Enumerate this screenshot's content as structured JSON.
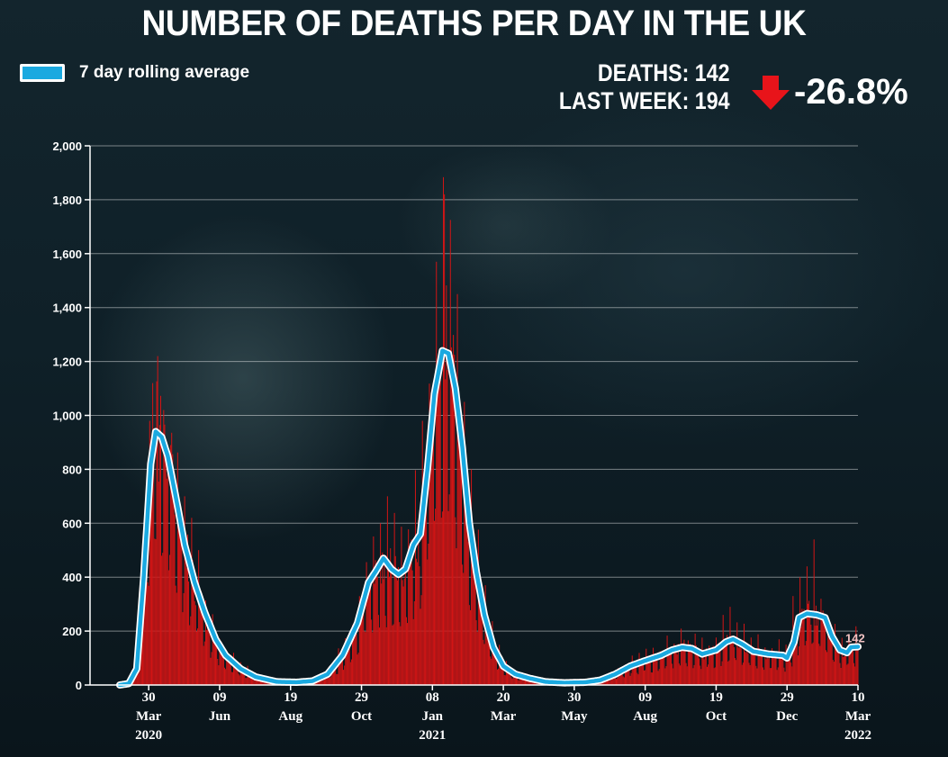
{
  "title": "NUMBER OF DEATHS PER DAY IN THE UK",
  "legend": {
    "label": "7 day rolling average",
    "color": "#1aa9e0"
  },
  "stats": {
    "deaths_label": "DEATHS: 142",
    "last_week_label": "LAST WEEK: 194",
    "change": "-26.8%",
    "arrow_icon": "down-arrow-icon",
    "arrow_color": "#e8141a"
  },
  "colors": {
    "bars": "#d31515",
    "line": "#1aa9e0",
    "line_outline": "#ffffff"
  },
  "chart_data": {
    "type": "bar",
    "title": "NUMBER OF DEATHS PER DAY IN THE UK",
    "xlabel": "",
    "ylabel": "",
    "ylim": [
      0,
      2000
    ],
    "yticks": [
      "0",
      "200",
      "400",
      "600",
      "800",
      "1,000",
      "1,200",
      "1,400",
      "1,600",
      "1,800",
      "2,000"
    ],
    "grid": true,
    "legend_position": "top-left",
    "x_range": [
      "2020-03-01",
      "2022-03-10"
    ],
    "x_ticks": [
      {
        "date": "2020-03-30",
        "day": "30",
        "month": "Mar",
        "year": "2020"
      },
      {
        "date": "2020-06-09",
        "day": "09",
        "month": "Jun",
        "year": ""
      },
      {
        "date": "2020-08-19",
        "day": "19",
        "month": "Aug",
        "year": ""
      },
      {
        "date": "2020-10-29",
        "day": "29",
        "month": "Oct",
        "year": ""
      },
      {
        "date": "2021-01-08",
        "day": "08",
        "month": "Jan",
        "year": "2021"
      },
      {
        "date": "2021-03-20",
        "day": "20",
        "month": "Mar",
        "year": ""
      },
      {
        "date": "2021-05-30",
        "day": "30",
        "month": "May",
        "year": ""
      },
      {
        "date": "2021-08-09",
        "day": "09",
        "month": "Aug",
        "year": ""
      },
      {
        "date": "2021-10-19",
        "day": "19",
        "month": "Oct",
        "year": ""
      },
      {
        "date": "2021-12-29",
        "day": "29",
        "month": "Dec",
        "year": ""
      },
      {
        "date": "2022-03-10",
        "day": "10",
        "month": "Mar",
        "year": "2022"
      }
    ],
    "series": [
      {
        "name": "7 day rolling average",
        "kind": "line",
        "points": [
          [
            "2020-03-01",
            0
          ],
          [
            "2020-03-10",
            5
          ],
          [
            "2020-03-18",
            60
          ],
          [
            "2020-03-25",
            400
          ],
          [
            "2020-04-01",
            820
          ],
          [
            "2020-04-06",
            940
          ],
          [
            "2020-04-12",
            920
          ],
          [
            "2020-04-18",
            850
          ],
          [
            "2020-04-26",
            700
          ],
          [
            "2020-05-05",
            520
          ],
          [
            "2020-05-15",
            380
          ],
          [
            "2020-05-25",
            270
          ],
          [
            "2020-06-05",
            170
          ],
          [
            "2020-06-15",
            110
          ],
          [
            "2020-06-30",
            60
          ],
          [
            "2020-07-15",
            30
          ],
          [
            "2020-08-05",
            12
          ],
          [
            "2020-08-25",
            10
          ],
          [
            "2020-09-10",
            15
          ],
          [
            "2020-09-25",
            40
          ],
          [
            "2020-10-10",
            110
          ],
          [
            "2020-10-25",
            230
          ],
          [
            "2020-11-05",
            380
          ],
          [
            "2020-11-12",
            420
          ],
          [
            "2020-11-20",
            470
          ],
          [
            "2020-11-28",
            430
          ],
          [
            "2020-12-05",
            410
          ],
          [
            "2020-12-12",
            430
          ],
          [
            "2020-12-20",
            520
          ],
          [
            "2020-12-27",
            560
          ],
          [
            "2021-01-03",
            800
          ],
          [
            "2021-01-10",
            1080
          ],
          [
            "2021-01-18",
            1240
          ],
          [
            "2021-01-24",
            1230
          ],
          [
            "2021-01-31",
            1100
          ],
          [
            "2021-02-07",
            880
          ],
          [
            "2021-02-14",
            600
          ],
          [
            "2021-02-21",
            420
          ],
          [
            "2021-03-01",
            260
          ],
          [
            "2021-03-10",
            140
          ],
          [
            "2021-03-20",
            70
          ],
          [
            "2021-04-01",
            40
          ],
          [
            "2021-04-15",
            25
          ],
          [
            "2021-05-01",
            12
          ],
          [
            "2021-05-20",
            8
          ],
          [
            "2021-06-10",
            10
          ],
          [
            "2021-06-25",
            18
          ],
          [
            "2021-07-10",
            40
          ],
          [
            "2021-07-25",
            70
          ],
          [
            "2021-08-09",
            90
          ],
          [
            "2021-08-25",
            110
          ],
          [
            "2021-09-05",
            130
          ],
          [
            "2021-09-15",
            140
          ],
          [
            "2021-09-25",
            135
          ],
          [
            "2021-10-05",
            115
          ],
          [
            "2021-10-19",
            130
          ],
          [
            "2021-10-29",
            160
          ],
          [
            "2021-11-05",
            170
          ],
          [
            "2021-11-15",
            150
          ],
          [
            "2021-11-25",
            125
          ],
          [
            "2021-12-10",
            115
          ],
          [
            "2021-12-25",
            110
          ],
          [
            "2021-12-29",
            100
          ],
          [
            "2022-01-05",
            160
          ],
          [
            "2022-01-10",
            250
          ],
          [
            "2022-01-18",
            265
          ],
          [
            "2022-01-28",
            260
          ],
          [
            "2022-02-05",
            250
          ],
          [
            "2022-02-12",
            180
          ],
          [
            "2022-02-20",
            130
          ],
          [
            "2022-02-27",
            120
          ],
          [
            "2022-03-03",
            140
          ],
          [
            "2022-03-10",
            142
          ]
        ]
      },
      {
        "name": "",
        "kind": "bar",
        "note_spikes": [
          [
            "2020-04-08",
            1220
          ],
          [
            "2020-04-03",
            1120
          ],
          [
            "2020-04-14",
            1020
          ],
          [
            "2020-04-21",
            890
          ],
          [
            "2020-05-05",
            700
          ],
          [
            "2020-05-12",
            620
          ],
          [
            "2020-11-17",
            600
          ],
          [
            "2020-11-24",
            700
          ],
          [
            "2020-12-29",
            980
          ],
          [
            "2021-01-12",
            1570
          ],
          [
            "2021-01-20",
            1820
          ],
          [
            "2021-01-26",
            1725
          ],
          [
            "2021-02-02",
            1450
          ],
          [
            "2021-02-09",
            1050
          ],
          [
            "2021-02-16",
            800
          ],
          [
            "2021-10-26",
            260
          ],
          [
            "2021-11-02",
            290
          ],
          [
            "2022-01-04",
            330
          ],
          [
            "2022-01-11",
            400
          ],
          [
            "2022-01-18",
            440
          ],
          [
            "2022-01-25",
            540
          ],
          [
            "2022-02-01",
            320
          ]
        ]
      }
    ],
    "end_label": "142"
  }
}
